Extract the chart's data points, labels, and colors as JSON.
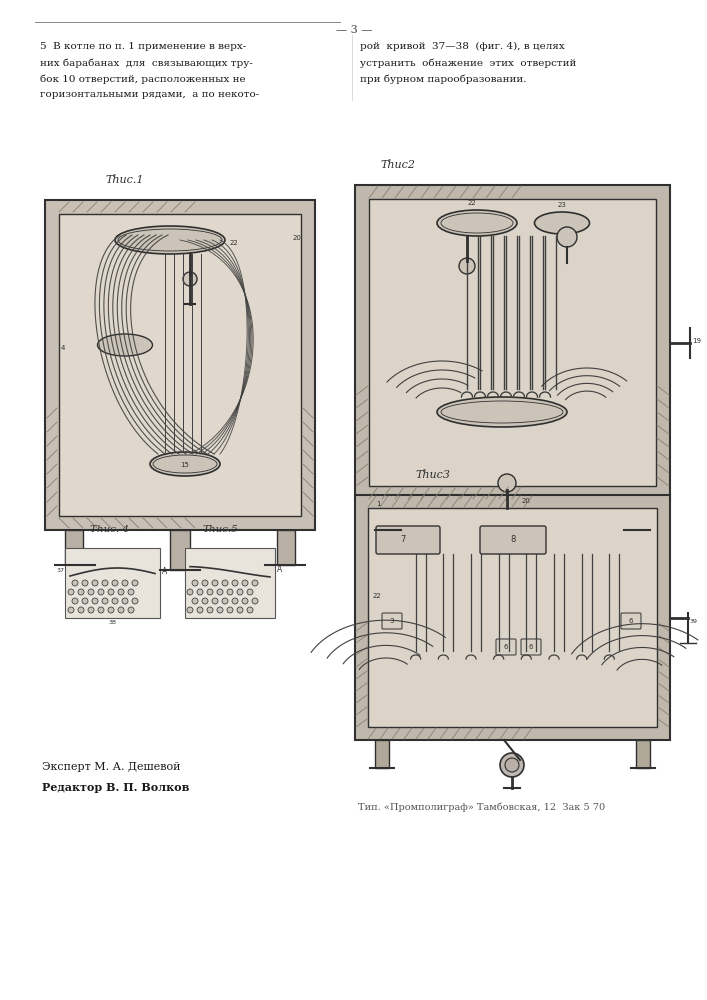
{
  "page_number": "— 3 —",
  "bg_color": "#ffffff",
  "text_color": "#1a1a1a",
  "top_text_left_lines": [
    "5  В котле по п. 1 применение в верх-",
    "них барабанах  для  связывающих тру-",
    "бок 10 отверстий, расположенных не",
    "горизонтальными рядами,  а по некото-"
  ],
  "top_text_right_lines": [
    "рой  кривой  37—38  (фиг. 4), в целях",
    "устранить  обнажение  этих  отверстий",
    "при бурном парообразовании."
  ],
  "fig1_label": "Τһuc.1",
  "fig2_label": "Τһuc2",
  "fig3_label": "Τһuc3",
  "fig4_label": "Τһuc. 4",
  "fig5_label": "Τһuc.5",
  "expert_text": "Эксперт М. А. Дешевой",
  "editor_text": "Редактор В. П. Волков",
  "publisher_text": "Тип. «Промполиграф» Тамбовская, 12  Зак 5 70",
  "wall_color": "#b0a898",
  "wall_dark": "#7a7060",
  "inner_bg": "#d8d0c4",
  "drum_color": "#c0b8a8",
  "tube_color": "#404040",
  "hatch_color": "#888070",
  "line_color": "#303030"
}
